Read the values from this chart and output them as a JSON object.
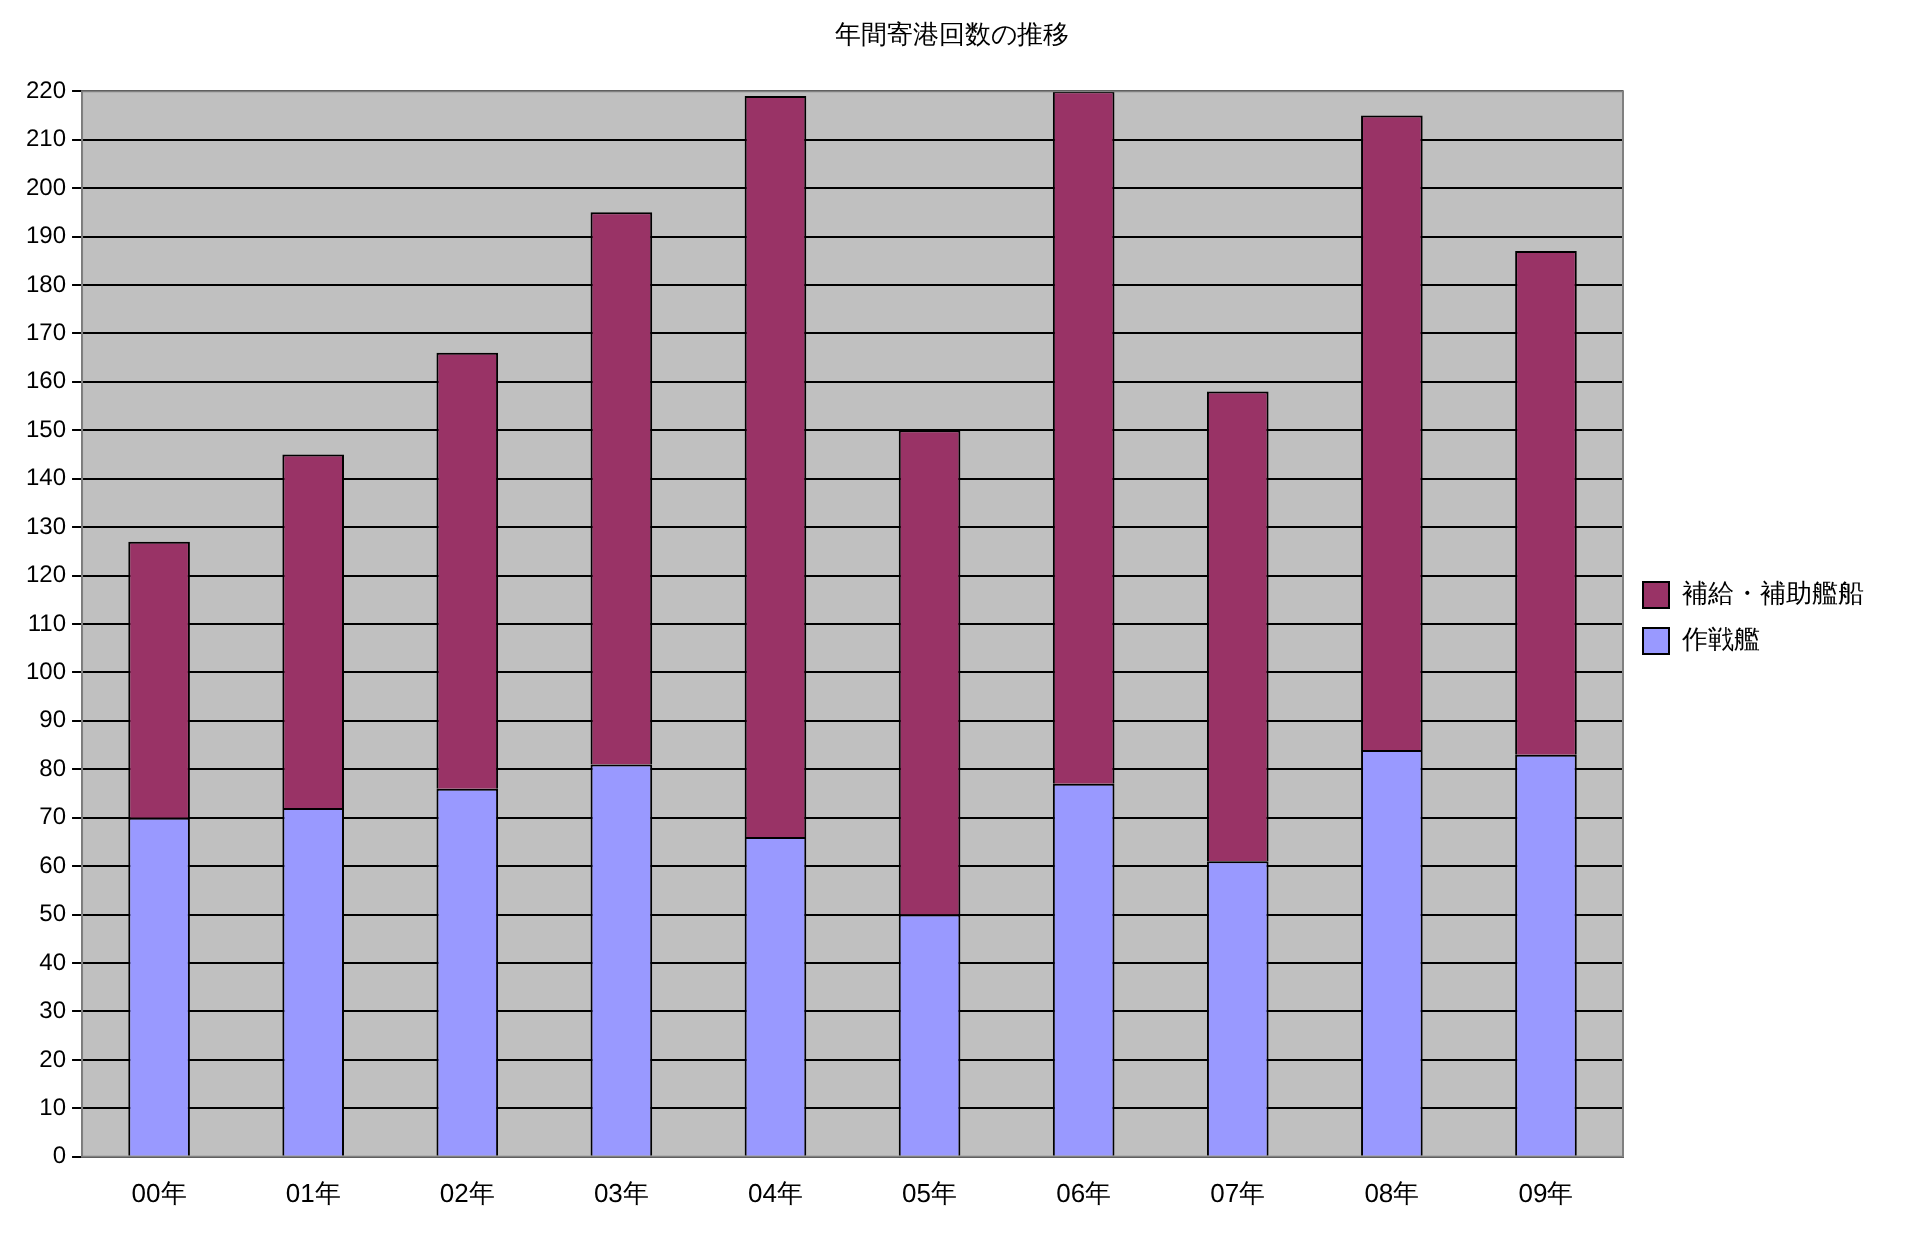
{
  "chart_data": {
    "type": "bar",
    "title": "年間寄港回数の推移",
    "categories": [
      "00年",
      "01年",
      "02年",
      "03年",
      "04年",
      "05年",
      "06年",
      "07年",
      "08年",
      "09年"
    ],
    "series": [
      {
        "name": "作戦艦",
        "color": "#9999ff",
        "values": [
          70,
          72,
          76,
          81,
          66,
          50,
          77,
          61,
          84,
          83
        ]
      },
      {
        "name": "補給・補助艦船",
        "color": "#993366",
        "values": [
          57,
          73,
          90,
          114,
          153,
          100,
          143,
          97,
          131,
          104
        ]
      }
    ],
    "stacked": true,
    "ylim": [
      0,
      220
    ],
    "yticks": [
      0,
      10,
      20,
      30,
      40,
      50,
      60,
      70,
      80,
      90,
      100,
      110,
      120,
      130,
      140,
      150,
      160,
      170,
      180,
      190,
      200,
      210,
      220
    ],
    "grid": "y",
    "legend": "right"
  }
}
